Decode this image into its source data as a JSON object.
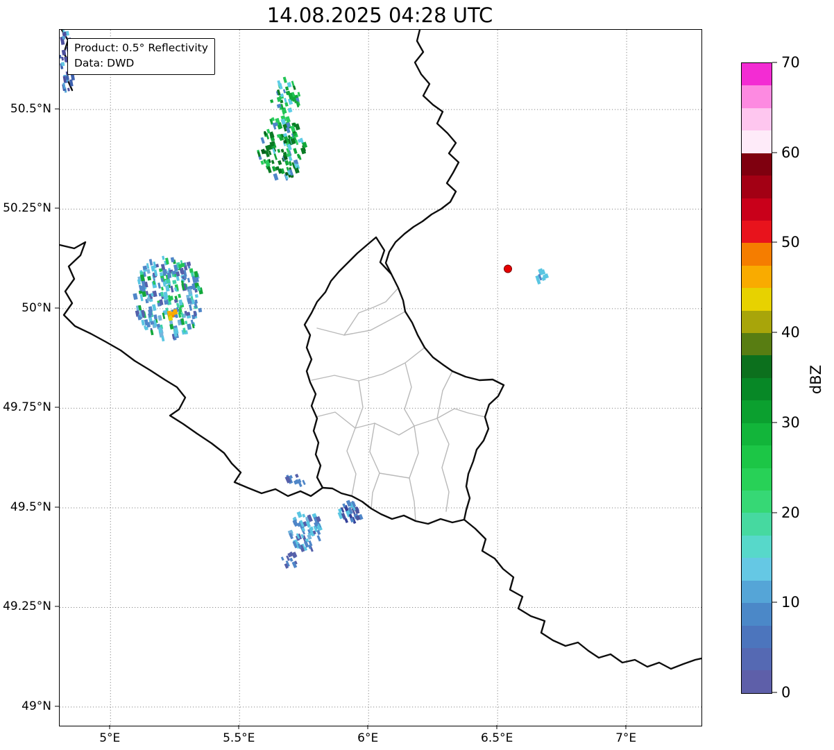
{
  "title": "14.08.2025 04:28 UTC",
  "info_box": {
    "line1": "Product: 0.5° Reflectivity",
    "line2": "Data: DWD"
  },
  "axes": {
    "extent": {
      "lon_min": 4.803,
      "lon_max": 7.29,
      "lat_min": 48.953,
      "lat_max": 50.7
    },
    "lon_ticks": [
      {
        "value": 5.0,
        "label": "5°E"
      },
      {
        "value": 5.5,
        "label": "5.5°E"
      },
      {
        "value": 6.0,
        "label": "6°E"
      },
      {
        "value": 6.5,
        "label": "6.5°E"
      },
      {
        "value": 7.0,
        "label": "7°E"
      }
    ],
    "lat_ticks": [
      {
        "value": 50.5,
        "label": "50.5°N"
      },
      {
        "value": 50.25,
        "label": "50.25°N"
      },
      {
        "value": 50.0,
        "label": "50°N"
      },
      {
        "value": 49.75,
        "label": "49.75°N"
      },
      {
        "value": 49.5,
        "label": "49.5°N"
      },
      {
        "value": 49.25,
        "label": "49.25°N"
      },
      {
        "value": 49.0,
        "label": "49°N"
      }
    ]
  },
  "colorbar": {
    "label": "dBZ",
    "vmin": 0,
    "vmax": 70,
    "ticks": [
      0,
      10,
      20,
      30,
      40,
      50,
      60,
      70
    ],
    "colors": [
      "#5e5fa9",
      "#5569b3",
      "#4c75bd",
      "#4b88c8",
      "#55a5d7",
      "#65c8e4",
      "#57d8ca",
      "#46d9a0",
      "#36d875",
      "#28d157",
      "#1cc646",
      "#12b53a",
      "#0ba02f",
      "#078826",
      "#0c701d",
      "#587d12",
      "#a8a50a",
      "#e7d200",
      "#f9ab00",
      "#f57d00",
      "#e8131c",
      "#c9001a",
      "#a30014",
      "#7f000f",
      "#feebf9",
      "#fec6ef",
      "#fd8ae1",
      "#f32cd3"
    ]
  },
  "chart_data": {
    "type": "heatmap",
    "description": "0.5° radar reflectivity (dBZ) over the Luxembourg / Eifel region with country borders and Luxembourg cantons",
    "radar_site_marker": {
      "lon": 6.54,
      "lat": 50.1,
      "color": "#e60000"
    },
    "echo_clusters": [
      {
        "name": "northwest-edge-streak",
        "lon": 4.83,
        "lat": 50.625,
        "rx_deg": 0.03,
        "ry_deg": 0.08,
        "tilt": -10,
        "count": 34,
        "seed": 101,
        "palette": [
          {
            "color": "#4c4f9e",
            "w": 3
          },
          {
            "color": "#3f62b0",
            "w": 2
          },
          {
            "color": "#55a5d7",
            "w": 1
          },
          {
            "color": "#65c8e4",
            "w": 1
          }
        ]
      },
      {
        "name": "cell-north-small",
        "lon": 5.677,
        "lat": 50.535,
        "rx_deg": 0.058,
        "ry_deg": 0.044,
        "tilt": -16,
        "count": 40,
        "seed": 202,
        "palette": [
          {
            "color": "#22c455",
            "w": 2
          },
          {
            "color": "#12a83a",
            "w": 2
          },
          {
            "color": "#0c7f26",
            "w": 1
          },
          {
            "color": "#5ecde6",
            "w": 2
          },
          {
            "color": "#4f86c8",
            "w": 1
          }
        ]
      },
      {
        "name": "cell-north-main",
        "lon": 5.663,
        "lat": 50.404,
        "rx_deg": 0.092,
        "ry_deg": 0.078,
        "tilt": -18,
        "count": 120,
        "seed": 303,
        "palette": [
          {
            "color": "#0a7a24",
            "w": 3
          },
          {
            "color": "#12a83a",
            "w": 3
          },
          {
            "color": "#28cd5c",
            "w": 2
          },
          {
            "color": "#5ecde6",
            "w": 2
          },
          {
            "color": "#4f86c8",
            "w": 2
          },
          {
            "color": "#07611d",
            "w": 1
          }
        ]
      },
      {
        "name": "cell-west-main",
        "lon": 5.225,
        "lat": 50.028,
        "rx_deg": 0.132,
        "ry_deg": 0.105,
        "tilt": -12,
        "count": 235,
        "seed": 404,
        "palette": [
          {
            "color": "#4f86c8",
            "w": 3
          },
          {
            "color": "#5560aa",
            "w": 2
          },
          {
            "color": "#5ac6e2",
            "w": 3
          },
          {
            "color": "#3ed2a6",
            "w": 1
          },
          {
            "color": "#22c455",
            "w": 1
          },
          {
            "color": "#12a83a",
            "w": 1
          },
          {
            "color": "#74b4dc",
            "w": 1
          }
        ]
      },
      {
        "name": "cell-west-core-orange",
        "lon": 5.241,
        "lat": 49.986,
        "rx_deg": 0.015,
        "ry_deg": 0.018,
        "tilt": -12,
        "count": 6,
        "seed": 505,
        "palette": [
          {
            "color": "#f9ab00",
            "w": 2
          },
          {
            "color": "#f57d00",
            "w": 1
          },
          {
            "color": "#e7d200",
            "w": 1
          }
        ]
      },
      {
        "name": "speck-east-of-marker",
        "lon": 6.669,
        "lat": 50.08,
        "rx_deg": 0.03,
        "ry_deg": 0.016,
        "tilt": -20,
        "count": 9,
        "seed": 606,
        "palette": [
          {
            "color": "#5ac6e2",
            "w": 2
          },
          {
            "color": "#4f86c8",
            "w": 1
          }
        ]
      },
      {
        "name": "speck-south-1",
        "lon": 5.717,
        "lat": 49.568,
        "rx_deg": 0.034,
        "ry_deg": 0.015,
        "tilt": -24,
        "count": 10,
        "seed": 707,
        "palette": [
          {
            "color": "#4f86c8",
            "w": 2
          },
          {
            "color": "#5560aa",
            "w": 1
          }
        ]
      },
      {
        "name": "cell-south-border",
        "lon": 5.932,
        "lat": 49.489,
        "rx_deg": 0.046,
        "ry_deg": 0.025,
        "tilt": -22,
        "count": 28,
        "seed": 808,
        "palette": [
          {
            "color": "#4f86c8",
            "w": 2
          },
          {
            "color": "#5ac6e2",
            "w": 2
          },
          {
            "color": "#4a55a0",
            "w": 1
          },
          {
            "color": "#35429a",
            "w": 1
          }
        ]
      },
      {
        "name": "cell-south-main",
        "lon": 5.758,
        "lat": 49.441,
        "rx_deg": 0.063,
        "ry_deg": 0.048,
        "tilt": -22,
        "count": 60,
        "seed": 909,
        "palette": [
          {
            "color": "#4f86c8",
            "w": 3
          },
          {
            "color": "#5ac6e2",
            "w": 2
          },
          {
            "color": "#5560aa",
            "w": 1
          },
          {
            "color": "#74b4dc",
            "w": 1
          }
        ]
      },
      {
        "name": "speck-south-2",
        "lon": 5.69,
        "lat": 49.369,
        "rx_deg": 0.036,
        "ry_deg": 0.018,
        "tilt": -24,
        "count": 11,
        "seed": 110,
        "palette": [
          {
            "color": "#5560aa",
            "w": 2
          },
          {
            "color": "#4f86c8",
            "w": 1
          }
        ]
      }
    ]
  }
}
